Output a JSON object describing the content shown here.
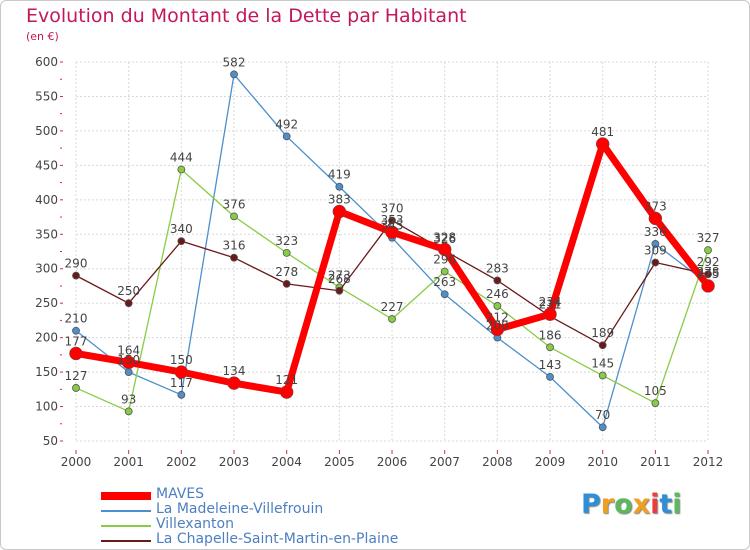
{
  "chart_data": {
    "type": "line",
    "title": "Evolution du Montant de la Dette par Habitant",
    "subtitle": "(en €)",
    "xlabel": "",
    "ylabel": "",
    "categories": [
      "2000",
      "2001",
      "2002",
      "2003",
      "2004",
      "2005",
      "2006",
      "2007",
      "2008",
      "2009",
      "2010",
      "2011",
      "2012"
    ],
    "y_ticks": [
      "50",
      "100",
      "150",
      "200",
      "250",
      "300",
      "350",
      "400",
      "450",
      "500",
      "550",
      "600"
    ],
    "ylim": [
      50,
      600
    ],
    "grid": true,
    "legend": "bottom-left",
    "series": [
      {
        "name": "MAVES",
        "color": "#ff0000",
        "values": [
          177,
          164,
          150,
          134,
          121,
          383,
          353,
          328,
          212,
          234,
          481,
          373,
          275
        ],
        "labels": [
          "177",
          "164",
          "150",
          "134",
          "121",
          "383",
          "353",
          "328",
          "212",
          "234",
          "481",
          "373",
          "275"
        ]
      },
      {
        "name": "La Madeleine-Villefrouin",
        "color": "#4d8fcc",
        "values": [
          210,
          150,
          117,
          582,
          492,
          419,
          345,
          263,
          200,
          143,
          70,
          336,
          278
        ],
        "labels": [
          "210",
          "150",
          "117",
          "582",
          "492",
          "419",
          "345",
          "263",
          "200",
          "143",
          "70",
          "336",
          "278"
        ]
      },
      {
        "name": "Villexanton",
        "color": "#88cc44",
        "values": [
          127,
          93,
          444,
          376,
          323,
          273,
          227,
          296,
          246,
          186,
          145,
          105,
          327
        ],
        "labels": [
          "127",
          "93",
          "444",
          "376",
          "323",
          "273",
          "227",
          "296",
          "246",
          "186",
          "145",
          "105",
          "327"
        ]
      },
      {
        "name": "La Chapelle-Saint-Martin-en-Plaine",
        "color": "#6b1a1a",
        "values": [
          290,
          250,
          340,
          316,
          278,
          268,
          370,
          326,
          283,
          231,
          189,
          309,
          292
        ],
        "labels": [
          "290",
          "250",
          "340",
          "316",
          "278",
          "268",
          "370",
          "326",
          "283",
          "231",
          "189",
          "309",
          "292"
        ]
      }
    ]
  },
  "logo": {
    "letters": [
      "P",
      "r",
      "o",
      "x",
      "i",
      "t",
      "i"
    ],
    "colors": [
      "#2f8fd6",
      "#f0a020",
      "#5cb85c",
      "#f0a020",
      "#e83e3e",
      "#2f8fd6",
      "#5cb85c"
    ]
  }
}
